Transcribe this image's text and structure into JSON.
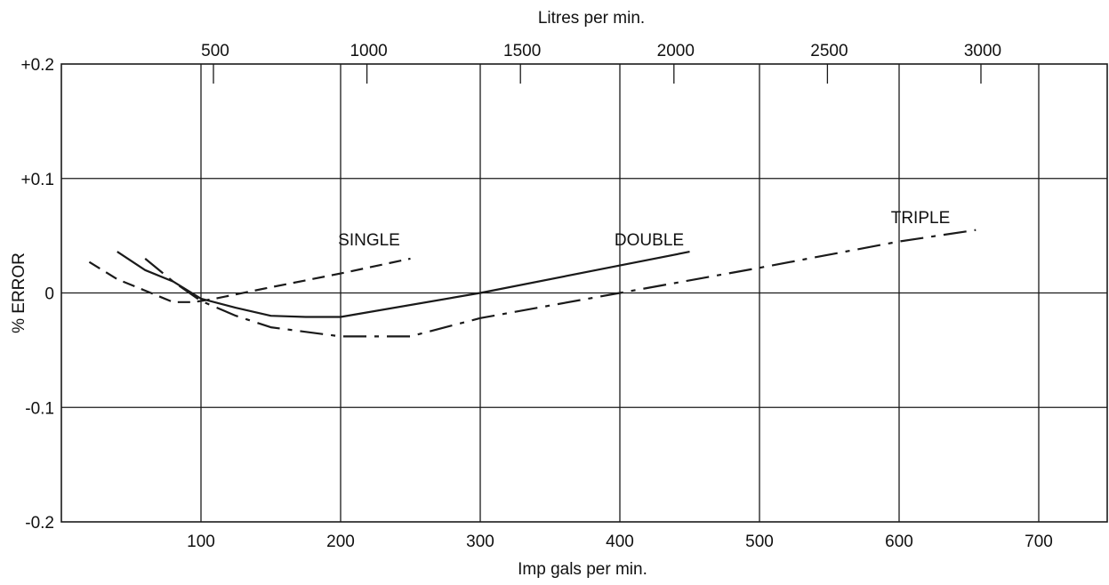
{
  "chart_data": {
    "type": "line",
    "title": "",
    "xlabel": "Imp gals per min.",
    "ylabel": "% ERROR",
    "top_xlabel": "Litres per min.",
    "xlim": [
      0,
      750
    ],
    "ylim": [
      -0.2,
      0.2
    ],
    "x_ticks": [
      100,
      200,
      300,
      400,
      500,
      600,
      700
    ],
    "x_tick_labels": [
      "100",
      "200",
      "300",
      "400",
      "500",
      "600",
      "700"
    ],
    "y_ticks": [
      0.2,
      0.1,
      0,
      -0.1,
      -0.2
    ],
    "y_tick_labels": [
      "+0.2",
      "+0.1",
      "0",
      "-0.1",
      "-0.2"
    ],
    "top_ticks": [
      500,
      1000,
      1500,
      2000,
      2500,
      3000
    ],
    "top_tick_labels": [
      "500",
      "1000",
      "1500",
      "2000",
      "2500",
      "3000"
    ],
    "grid": true,
    "series": [
      {
        "name": "SINGLE",
        "dash": "dashed",
        "x": [
          20,
          40,
          60,
          80,
          95,
          110,
          150,
          200,
          250
        ],
        "y": [
          0.027,
          0.012,
          0.002,
          -0.008,
          -0.008,
          -0.005,
          0.005,
          0.017,
          0.03
        ]
      },
      {
        "name": "DOUBLE",
        "dash": "solid",
        "x": [
          40,
          60,
          80,
          100,
          125,
          150,
          175,
          200,
          300,
          400,
          450
        ],
        "y": [
          0.036,
          0.02,
          0.01,
          -0.005,
          -0.013,
          -0.02,
          -0.021,
          -0.021,
          0.0,
          0.024,
          0.036
        ]
      },
      {
        "name": "TRIPLE",
        "dash": "dash-dot",
        "x": [
          60,
          80,
          100,
          125,
          150,
          200,
          250,
          300,
          400,
          500,
          600,
          655
        ],
        "y": [
          0.03,
          0.01,
          -0.007,
          -0.02,
          -0.03,
          -0.038,
          -0.038,
          -0.022,
          0.0,
          0.022,
          0.045,
          0.055
        ]
      }
    ]
  }
}
